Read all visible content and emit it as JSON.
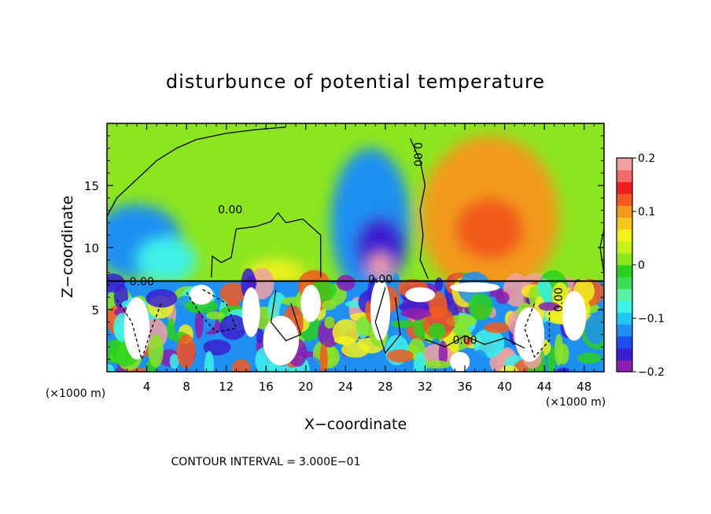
{
  "chart_data": {
    "type": "heatmap",
    "title": "disturbunce of potential temperature",
    "xlabel": "X−coordinate",
    "ylabel": "Z−coordinate",
    "x_unit_left": "(×1000 m)",
    "x_unit_right": "(×1000 m)",
    "xlim": [
      0,
      50
    ],
    "ylim": [
      0,
      20
    ],
    "xticks": [
      "4",
      "8",
      "12",
      "16",
      "20",
      "24",
      "28",
      "32",
      "36",
      "40",
      "44",
      "48"
    ],
    "xtick_values": [
      4,
      8,
      12,
      16,
      20,
      24,
      28,
      32,
      36,
      40,
      44,
      48
    ],
    "yticks": [
      "5",
      "10",
      "15"
    ],
    "ytick_values": [
      5,
      10,
      15
    ],
    "colorbar": {
      "min": -0.2,
      "max": 0.2,
      "tick_labels": [
        "0.2",
        "0.1",
        "0",
        "−0.1",
        "−0.2"
      ],
      "tick_values": [
        0.2,
        0.1,
        0,
        -0.1,
        -0.2
      ],
      "colors": [
        "#8b1fb0",
        "#3a1fd0",
        "#1f4ff2",
        "#1f8ff2",
        "#1fc8f2",
        "#3ff2e8",
        "#5af0a8",
        "#3fdc5a",
        "#2ad21f",
        "#8ce61f",
        "#c8f01f",
        "#f2f01f",
        "#f2c81f",
        "#f29a1f",
        "#f25a1f",
        "#f21f1f",
        "#f26a6a",
        "#f2a0a0"
      ]
    },
    "contour_labels": [
      "0.00",
      "0.00",
      "0.00",
      "0.00",
      "0.00",
      "0.00"
    ],
    "contour_interval_label": "CONTOUR INTERVAL =",
    "contour_interval_value": "3.000E−01",
    "upper_regions": [
      {
        "x": 3,
        "z": 10.5,
        "value": -0.12,
        "rx": 4.5,
        "rz": 3.0
      },
      {
        "x": 6,
        "z": 9.0,
        "value": -0.08,
        "rx": 3.0,
        "rz": 1.8
      },
      {
        "x": 17,
        "z": 8.0,
        "value": 0.05,
        "rx": 3.0,
        "rz": 1.0
      },
      {
        "x": 26.5,
        "z": 12.0,
        "value": -0.12,
        "rx": 4.0,
        "rz": 6.0
      },
      {
        "x": 27.5,
        "z": 10.0,
        "value": -0.16,
        "rx": 2.5,
        "rz": 2.5
      },
      {
        "x": 27.5,
        "z": 8.5,
        "value": 0.2,
        "rx": 1.2,
        "rz": 1.0
      },
      {
        "x": 38.5,
        "z": 12.5,
        "value": 0.09,
        "rx": 7.0,
        "rz": 6.5
      },
      {
        "x": 38.5,
        "z": 11.5,
        "value": 0.13,
        "rx": 3.5,
        "rz": 2.5
      }
    ]
  }
}
